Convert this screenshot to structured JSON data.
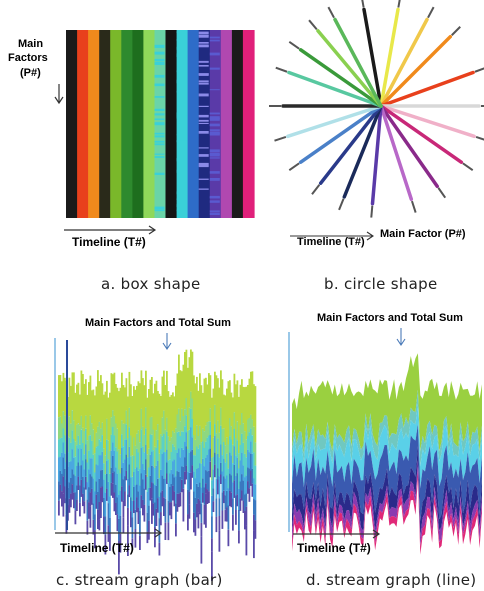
{
  "panels": {
    "a": {
      "y_label_line1": "Main",
      "y_label_line2": "Factors",
      "y_label_line3": "(P#)",
      "x_label": "Timeline (T#)",
      "caption": "a. box shape",
      "stripe_colors": [
        "#1a1a1a",
        "#e8401c",
        "#f08a1c",
        "#2a2a1a",
        "#7ab82a",
        "#2e8a2e",
        "#1e6e1e",
        "#8fd85a",
        "#6ad4a8",
        "#151515",
        "#3ad0d8",
        "#2e6cc8",
        "#1f2a80",
        "#5a3aa8",
        "#b048b0",
        "#1a1a1a",
        "#e0207a"
      ]
    },
    "b": {
      "x_label": "Timeline (T#)",
      "factor_label": "Main Factor (P#)",
      "caption": "b. circle shape"
    },
    "c": {
      "annotation": "Main Factors and Total Sum",
      "x_label": "Timeline (T#)",
      "caption": "c. stream graph (bar)"
    },
    "d": {
      "annotation": "Main Factors and Total Sum",
      "x_label": "Timeline (T#)",
      "caption": "d. stream graph (line)"
    }
  }
}
